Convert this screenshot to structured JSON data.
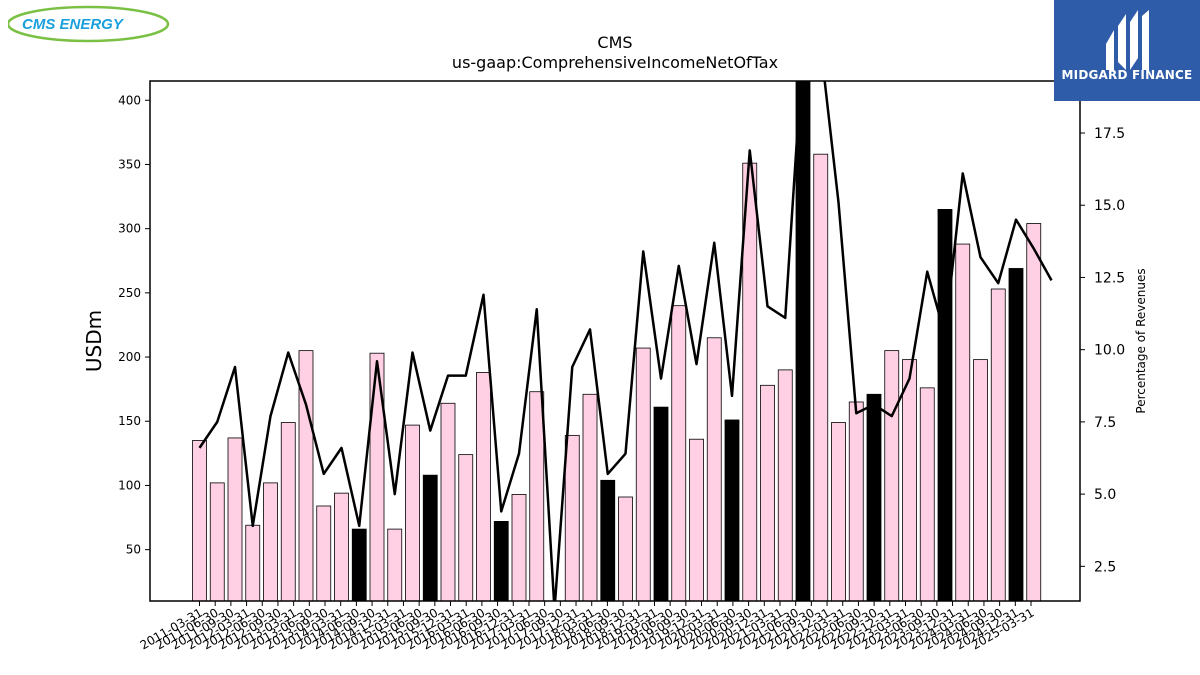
{
  "brand_left": {
    "name": "CMS ENERGY"
  },
  "brand_right": {
    "name": "MIDGARD FINANCE"
  },
  "colors": {
    "bar_normal": "#ffd0e4",
    "bar_highlight": "#000000",
    "line": "#000000",
    "logo_blue": "#1aa0dc",
    "logo_green": "#7ac143",
    "brand_bg": "#2f5ca8"
  },
  "chart_data": {
    "type": "bar",
    "title": "CMS",
    "subtitle": "us-gaap:ComprehensiveIncomeNetOfTax",
    "ylabel": "USDm",
    "y2label": "Percentage of Revenues",
    "ylim": [
      10,
      415
    ],
    "y2lim": [
      1.3,
      19.3
    ],
    "yticks": [
      "50",
      "100",
      "150",
      "200",
      "250",
      "300",
      "350",
      "400"
    ],
    "y2ticks": [
      "2.5",
      "5.0",
      "7.5",
      "10.0",
      "12.5",
      "15.0",
      "17.5"
    ],
    "categories": [
      "2011-03-31",
      "2011-06-30",
      "2011-09-30",
      "2011-12-31",
      "2012-03-31",
      "2012-06-30",
      "2012-09-30",
      "2012-12-31",
      "2013-03-31",
      "2013-06-30",
      "2013-09-30",
      "2013-12-31",
      "2014-03-31",
      "2014-06-30",
      "2014-09-30",
      "2014-12-31",
      "2015-03-31",
      "2015-06-30",
      "2015-09-30",
      "2015-12-31",
      "2016-03-31",
      "2016-06-30",
      "2016-09-30",
      "2016-12-31",
      "2017-03-31",
      "2017-06-30",
      "2017-09-30",
      "2017-12-31",
      "2018-03-31",
      "2018-06-30",
      "2018-09-30",
      "2018-12-31",
      "2019-03-31",
      "2019-06-30",
      "2019-09-30",
      "2019-12-31",
      "2020-03-31",
      "2020-06-30",
      "2020-09-30",
      "2020-12-31",
      "2021-03-31",
      "2021-06-30",
      "2021-09-30",
      "2021-12-31",
      "2022-03-31",
      "2022-06-30",
      "2022-09-30",
      "2022-12-31",
      "2023-03-31",
      "2023-06-30",
      "2023-09-30",
      "2023-12-31",
      "2024-03-31",
      "2024-06-30",
      "2024-09-30",
      "2024-12-31",
      "2025-03-31"
    ],
    "xtick_labels": [
      "2011-03-31",
      "2011-06-30",
      "2011-09-30",
      "2012-03-31",
      "2012-06-30",
      "2012-09-30",
      "2013-03-31",
      "2013-06-30",
      "2013-09-30",
      "2014-03-31",
      "2014-06-30",
      "2014-09-30",
      "2014-12-31",
      "2015-03-31",
      "2015-06-30",
      "2015-09-30",
      "2015-12-31",
      "2016-03-31",
      "2016-06-30",
      "2016-09-30",
      "2016-12-31",
      "2017-03-31",
      "2017-06-30",
      "2017-09-30",
      "2017-12-31",
      "2018-03-31",
      "2018-06-30",
      "2018-09-30",
      "2018-12-31",
      "2019-03-31",
      "2019-06-30",
      "2019-09-30",
      "2019-12-31",
      "2020-03-31",
      "2020-06-30",
      "2020-09-30",
      "2020-12-31",
      "2021-03-31",
      "2021-06-30",
      "2021-09-30",
      "2021-12-31",
      "2022-03-31",
      "2022-06-30",
      "2022-09-30",
      "2022-12-31",
      "2023-03-31",
      "2023-06-30",
      "2023-09-30",
      "2023-12-31",
      "2024-03-31",
      "2024-06-30",
      "2024-09-30",
      "2024-12-31",
      "2025-03-31"
    ],
    "bars": [
      {
        "category": "2011-03-31",
        "value": 135,
        "highlight": false
      },
      {
        "category": "2011-06-30",
        "value": 102,
        "highlight": false
      },
      {
        "category": "2011-09-30",
        "value": 137,
        "highlight": false
      },
      {
        "category": "2011-12-31",
        "value": 69,
        "highlight": false
      },
      {
        "category": "2012-03-31",
        "value": 102,
        "highlight": false
      },
      {
        "category": "2012-06-30",
        "value": 149,
        "highlight": false
      },
      {
        "category": "2012-09-30",
        "value": 205,
        "highlight": false
      },
      {
        "category": "2012-12-31",
        "value": 84,
        "highlight": false
      },
      {
        "category": "2013-03-31",
        "value": 94,
        "highlight": false
      },
      {
        "category": "2013-06-30",
        "value": 66,
        "highlight": true
      },
      {
        "category": "2013-09-30",
        "value": 203,
        "highlight": false
      },
      {
        "category": "2013-12-31",
        "value": 66,
        "highlight": false
      },
      {
        "category": "2014-03-31",
        "value": 147,
        "highlight": false
      },
      {
        "category": "2014-06-30",
        "value": 108,
        "highlight": true
      },
      {
        "category": "2014-09-30",
        "value": 164,
        "highlight": false
      },
      {
        "category": "2014-12-31",
        "value": 124,
        "highlight": false
      },
      {
        "category": "2015-03-31",
        "value": 188,
        "highlight": false
      },
      {
        "category": "2015-06-30",
        "value": 72,
        "highlight": true
      },
      {
        "category": "2015-09-30",
        "value": 93,
        "highlight": false
      },
      {
        "category": "2015-12-31",
        "value": 173,
        "highlight": false
      },
      {
        "category": "2016-03-31",
        "value": 10,
        "highlight": false
      },
      {
        "category": "2016-06-30",
        "value": 139,
        "highlight": false
      },
      {
        "category": "2016-09-30",
        "value": 171,
        "highlight": false
      },
      {
        "category": "2016-12-31",
        "value": 104,
        "highlight": true
      },
      {
        "category": "2017-03-31",
        "value": 91,
        "highlight": false
      },
      {
        "category": "2017-06-30",
        "value": 207,
        "highlight": false
      },
      {
        "category": "2017-09-30",
        "value": 161,
        "highlight": true
      },
      {
        "category": "2017-12-31",
        "value": 240,
        "highlight": false
      },
      {
        "category": "2018-03-31",
        "value": 136,
        "highlight": false
      },
      {
        "category": "2018-06-30",
        "value": 215,
        "highlight": false
      },
      {
        "category": "2018-09-30",
        "value": 151,
        "highlight": true
      },
      {
        "category": "2018-12-31",
        "value": 351,
        "highlight": false
      },
      {
        "category": "2019-03-31",
        "value": 178,
        "highlight": false
      },
      {
        "category": "2019-06-30",
        "value": 190,
        "highlight": false
      },
      {
        "category": "2019-09-30",
        "value": 420,
        "highlight": true
      },
      {
        "category": "2019-12-31",
        "value": 358,
        "highlight": false
      },
      {
        "category": "2020-03-31",
        "value": 149,
        "highlight": false
      },
      {
        "category": "2020-06-30",
        "value": 165,
        "highlight": false
      },
      {
        "category": "2020-09-30",
        "value": 171,
        "highlight": true
      },
      {
        "category": "2020-12-31",
        "value": 205,
        "highlight": false
      },
      {
        "category": "2021-03-31",
        "value": 198,
        "highlight": false
      },
      {
        "category": "2021-06-30",
        "value": 176,
        "highlight": false
      },
      {
        "category": "2021-09-30",
        "value": 315,
        "highlight": true
      },
      {
        "category": "2021-12-31",
        "value": 288,
        "highlight": false
      },
      {
        "category": "2022-03-31",
        "value": 198,
        "highlight": false
      },
      {
        "category": "2022-06-30",
        "value": 253,
        "highlight": false
      },
      {
        "category": "2022-09-30",
        "value": 269,
        "highlight": true
      },
      {
        "category": "2022-12-31",
        "value": 304,
        "highlight": false
      }
    ],
    "line": {
      "axis": "secondary",
      "values": [
        6.6,
        7.5,
        9.4,
        3.9,
        7.7,
        9.9,
        8.1,
        5.7,
        6.6,
        3.9,
        9.6,
        5.0,
        9.9,
        7.2,
        9.1,
        9.1,
        11.9,
        4.4,
        6.4,
        11.4,
        1.0,
        9.4,
        10.7,
        5.7,
        6.4,
        13.4,
        9.0,
        12.9,
        9.5,
        13.7,
        8.4,
        16.9,
        11.5,
        11.1,
        20.5,
        20.5,
        15.1,
        7.8,
        8.1,
        7.7,
        9.0,
        12.7,
        10.5,
        16.1,
        13.2,
        12.3,
        14.5,
        13.5,
        12.4
      ]
    }
  }
}
